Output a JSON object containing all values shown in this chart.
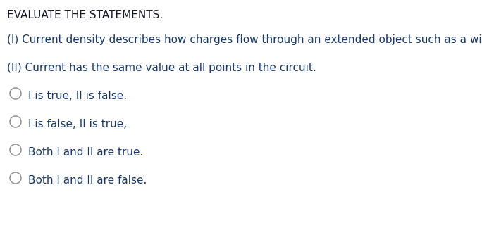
{
  "bg_color": "#ffffff",
  "title": "EVALUATE THE STATEMENTS.",
  "title_color": "#1a1a2e",
  "title_fontsize": 11.0,
  "title_fontweight": "normal",
  "statement1": "(I) Current density describes how charges flow through an extended object such as a wire.",
  "statement1_color": "#1a3a6b",
  "statement1_fontsize": 11.0,
  "statement2": "(II) Current has the same value at all points in the circuit.",
  "statement2_color": "#1a3a6b",
  "statement2_fontsize": 11.0,
  "options": [
    "I is true, II is false.",
    "I is false, II is true,",
    "Both I and II are true.",
    "Both I and II are false."
  ],
  "options_color": "#1a3a6b",
  "options_fontsize": 11.0,
  "circle_color": "#888888",
  "circle_linewidth": 1.0
}
